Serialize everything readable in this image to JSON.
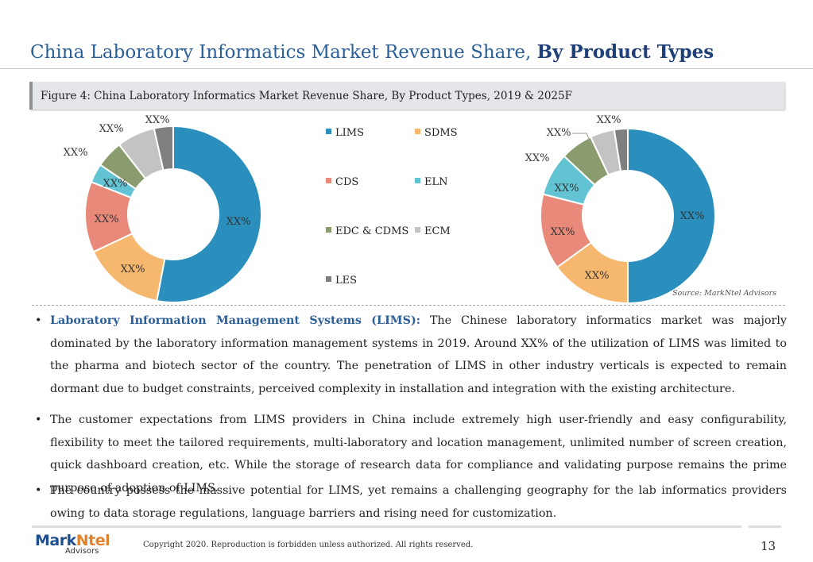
{
  "page": {
    "title_regular": "China Laboratory Informatics Market Revenue Share, ",
    "title_bold": "By Product Types",
    "figure_caption": "Figure 4: China Laboratory Informatics Market Revenue Share, By Product Types, 2019 & 2025F",
    "source": "Source: MarkNtel Advisors",
    "copyright": "Copyright 2020. Reproduction is forbidden unless authorized. All rights reserved.",
    "page_number": "13",
    "logo_main_a": "Mark",
    "logo_main_b": "Ntel",
    "logo_sub": "Advisors"
  },
  "bullets": [
    {
      "lead": "Laboratory Information Management Systems (LIMS):",
      "text": " The Chinese laboratory informatics market was majorly dominated by the laboratory information management systems in 2019. Around XX% of the utilization of LIMS was limited to the pharma and biotech sector of the country. The penetration of LIMS in other industry verticals is expected to remain dormant due to budget constraints, perceived complexity in installation and integration with the existing architecture."
    },
    {
      "lead": "",
      "text": "The customer expectations from LIMS providers in China include extremely high user-friendly and easy configurability, flexibility to meet the tailored requirements, multi-laboratory and location management, unlimited number of screen creation, quick dashboard creation, etc. While the storage of research data for compliance and validating purpose remains the prime purpose of adoption of LIMS."
    },
    {
      "lead": "",
      "text": "The country possess the massive potential for LIMS, yet remains a challenging geography for the lab informatics providers owing to  data storage regulations, language barriers and rising need for customization."
    }
  ],
  "chart_data": [
    {
      "type": "pie",
      "variant": "donut",
      "categories": [
        "LIMS",
        "SDMS",
        "CDS",
        "ELN",
        "EDC & CDMS",
        "ECM",
        "LES"
      ],
      "values": [
        53,
        15,
        13,
        3.5,
        5,
        7,
        3.5
      ],
      "labels": [
        "XX%",
        "XX%",
        "XX%",
        "XX%",
        "XX%",
        "XX%",
        "XX%"
      ],
      "colors": [
        "#2a8fbd",
        "#f5b86e",
        "#e8897a",
        "#62c4d3",
        "#8a9c6e",
        "#c3c3c3",
        "#7f7f7f"
      ]
    },
    {
      "type": "pie",
      "variant": "donut",
      "categories": [
        "LIMS",
        "SDMS",
        "CDS",
        "ELN",
        "EDC & CDMS",
        "ECM",
        "LES"
      ],
      "values": [
        50,
        15,
        14,
        8,
        6,
        4.5,
        2.5
      ],
      "labels": [
        "XX%",
        "XX%",
        "XX%",
        "XX%",
        "XX%",
        "XX%",
        "XX%"
      ],
      "colors": [
        "#2a8fbd",
        "#f5b86e",
        "#e8897a",
        "#62c4d3",
        "#8a9c6e",
        "#c3c3c3",
        "#7f7f7f"
      ],
      "legend_placement": "between charts"
    }
  ]
}
